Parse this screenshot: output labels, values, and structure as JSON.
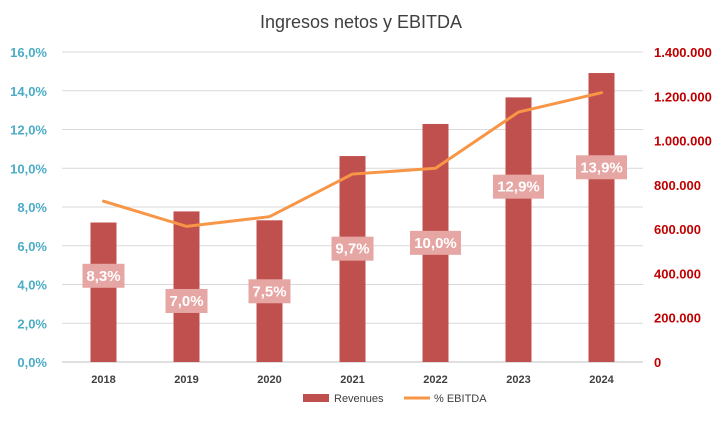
{
  "chart_data": {
    "type": "bar",
    "title": "Ingresos netos y EBITDA",
    "categories": [
      "2018",
      "2019",
      "2020",
      "2021",
      "2022",
      "2023",
      "2024"
    ],
    "series": [
      {
        "name": "Revenues",
        "type": "bar",
        "axis": "right",
        "values": [
          630000,
          680000,
          640000,
          930000,
          1075000,
          1195000,
          1305000
        ],
        "color": "#c0504d"
      },
      {
        "name": "% EBITDA",
        "type": "line",
        "axis": "left",
        "values": [
          8.3,
          7.0,
          7.5,
          9.7,
          10.0,
          12.9,
          13.9
        ],
        "data_labels": [
          "8,3%",
          "7,0%",
          "7,5%",
          "9,7%",
          "10,0%",
          "12,9%",
          "13,9%"
        ],
        "color": "#f79646"
      }
    ],
    "y_left": {
      "ylim": [
        0,
        16
      ],
      "ticks": [
        "0,0%",
        "2,0%",
        "4,0%",
        "6,0%",
        "8,0%",
        "10,0%",
        "12,0%",
        "14,0%",
        "16,0%"
      ],
      "color": "#4bacc6"
    },
    "y_right": {
      "ylim": [
        0,
        1400000
      ],
      "ticks": [
        "0",
        "200.000",
        "400.000",
        "600.000",
        "800.000",
        "1.000.000",
        "1.200.000",
        "1.400.000"
      ],
      "color": "#c00000"
    },
    "grid": true,
    "legend": "bottom",
    "data_label_bg": "#e6a6a4"
  }
}
